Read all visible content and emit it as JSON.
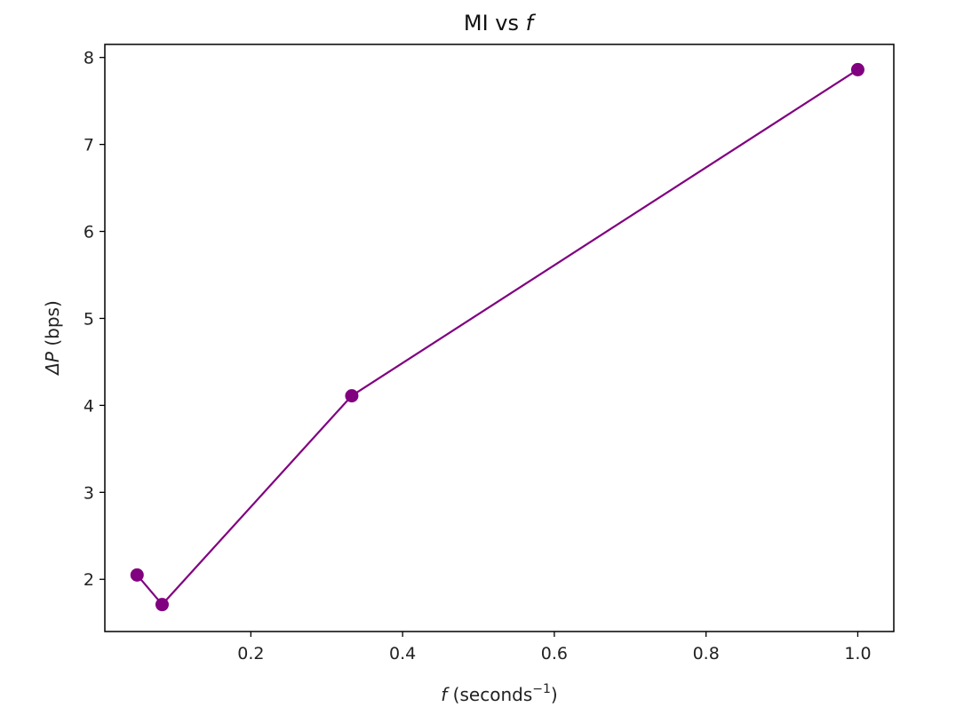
{
  "chart_data": {
    "type": "line",
    "title": "MI vs f",
    "title_parts": {
      "prefix": "MI vs ",
      "variable": "f"
    },
    "xlabel": "f (seconds⁻¹)",
    "xlabel_parts": {
      "variable": "f",
      "unit_text": " (seconds",
      "superscript": "−1",
      "close": ")"
    },
    "ylabel": "ΔP (bps)",
    "ylabel_parts": {
      "symbol": "ΔP",
      "unit_text": " (bps)"
    },
    "xlim": [
      0.0075,
      1.0475
    ],
    "ylim": [
      1.4,
      8.15
    ],
    "x_ticks": [
      0.2,
      0.4,
      0.6,
      0.8,
      1.0
    ],
    "x_tick_labels": [
      "0.2",
      "0.4",
      "0.6",
      "0.8",
      "1.0"
    ],
    "y_ticks": [
      2,
      3,
      4,
      5,
      6,
      7,
      8
    ],
    "y_tick_labels": [
      "2",
      "3",
      "4",
      "5",
      "6",
      "7",
      "8"
    ],
    "grid": false,
    "legend": "none",
    "series": [
      {
        "color": "#800080",
        "marker": "circle",
        "x": [
          0.05,
          0.083,
          0.333,
          1.0
        ],
        "y": [
          2.05,
          1.71,
          4.11,
          7.86
        ]
      }
    ]
  }
}
